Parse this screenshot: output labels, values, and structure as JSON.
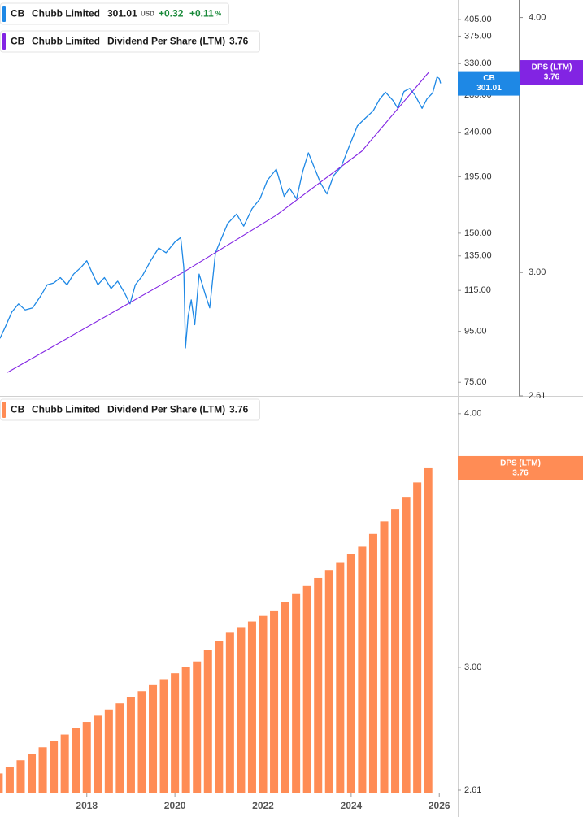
{
  "chart_data": [
    {
      "type": "line",
      "log_scale": true,
      "xlim": [
        2016.03,
        2026.42
      ],
      "ylim": [
        70.4,
        443.6
      ],
      "yticks": [
        {
          "value": 405,
          "label": "405.00"
        },
        {
          "value": 375,
          "label": "375.00"
        },
        {
          "value": 330,
          "label": "330.00"
        },
        {
          "value": 285,
          "label": "285.00"
        },
        {
          "value": 240,
          "label": "240.00"
        },
        {
          "value": 195,
          "label": "195.00"
        },
        {
          "value": 150,
          "label": "150.00"
        },
        {
          "value": 135,
          "label": "135.00"
        },
        {
          "value": 115,
          "label": "115.00"
        },
        {
          "value": 95,
          "label": "95.00"
        },
        {
          "value": 75,
          "label": "75.00"
        }
      ],
      "y2lim": [
        2.61,
        4.08
      ],
      "y2ticks": [
        {
          "value": 4,
          "label": "4.00"
        },
        {
          "value": 3,
          "label": "3.00"
        },
        2.61
      ],
      "series": [
        {
          "symbol": "CB",
          "name": "Chubb Limited",
          "color": "#1e88e5",
          "currency": "USD",
          "change": "+0.32",
          "change_pct": "+0.11",
          "pct_sign": "%",
          "x": [
            2016.03,
            2016.15,
            2016.3,
            2016.45,
            2016.6,
            2016.77,
            2016.95,
            2017.1,
            2017.25,
            2017.4,
            2017.55,
            2017.7,
            2017.87,
            2018.0,
            2018.1,
            2018.25,
            2018.4,
            2018.55,
            2018.7,
            2018.85,
            2018.98,
            2019.1,
            2019.26,
            2019.45,
            2019.63,
            2019.8,
            2020.0,
            2020.13,
            2020.2,
            2020.24,
            2020.3,
            2020.37,
            2020.45,
            2020.55,
            2020.7,
            2020.79,
            2020.92,
            2021.05,
            2021.2,
            2021.4,
            2021.56,
            2021.75,
            2021.93,
            2022.1,
            2022.3,
            2022.48,
            2022.6,
            2022.76,
            2022.9,
            2023.03,
            2023.15,
            2023.31,
            2023.45,
            2023.6,
            2023.77,
            2023.95,
            2024.14,
            2024.3,
            2024.5,
            2024.65,
            2024.78,
            2024.95,
            2025.06,
            2025.2,
            2025.33,
            2025.45,
            2025.61,
            2025.72,
            2025.85,
            2025.95,
            2026.0,
            2026.03
          ],
          "values": [
            92,
            97,
            104,
            108,
            105,
            106,
            112,
            118,
            119,
            122,
            118,
            124,
            128,
            132,
            126,
            118,
            122,
            116,
            120,
            114,
            108,
            118,
            123,
            132,
            140,
            137,
            144,
            147,
            128,
            88,
            102,
            110,
            98,
            124,
            112,
            106,
            137,
            146,
            157,
            164,
            155,
            168,
            176,
            192,
            202,
            178,
            185,
            176,
            200,
            218,
            205,
            189,
            180,
            196,
            204,
            224,
            247,
            255,
            265,
            280,
            289,
            278,
            268,
            290,
            294,
            285,
            268,
            280,
            288,
            310,
            308,
            301.01
          ]
        },
        {
          "symbol": "CB",
          "company": "Chubb Limited",
          "name": "Dividend Per Share (LTM)",
          "label": "DPS (LTM)",
          "color": "#8224e3",
          "axis": "y2",
          "x": [
            2016.2,
            2020.18,
            2022.3,
            2024.24,
            2025.76
          ],
          "values": [
            2.68,
            3.0,
            3.2,
            3.44,
            3.76
          ]
        }
      ]
    },
    {
      "type": "bar",
      "log_scale": true,
      "xlim": [
        2016.03,
        2026.42
      ],
      "xticks": [
        2018,
        2020,
        2022,
        2024,
        2026
      ],
      "ylim": [
        2.61,
        4.07
      ],
      "yticks": [
        {
          "value": 4,
          "label": "4.00"
        },
        {
          "value": 3,
          "label": "3.00"
        },
        2.61
      ],
      "series": [
        {
          "symbol": "CB",
          "company": "Chubb Limited",
          "name": "Dividend Per Share (LTM)",
          "label": "DPS (LTM)",
          "color": "#ff8c55",
          "x": [
            2016.0,
            2016.25,
            2016.5,
            2016.75,
            2017.0,
            2017.25,
            2017.5,
            2017.75,
            2018.0,
            2018.25,
            2018.5,
            2018.75,
            2019.0,
            2019.25,
            2019.5,
            2019.75,
            2020.0,
            2020.25,
            2020.5,
            2020.75,
            2021.0,
            2021.25,
            2021.5,
            2021.75,
            2022.0,
            2022.25,
            2022.5,
            2022.75,
            2023.0,
            2023.25,
            2023.5,
            2023.75,
            2024.0,
            2024.25,
            2024.5,
            2024.75,
            2025.0,
            2025.25,
            2025.5,
            2025.75
          ],
          "values": [
            2.66,
            2.68,
            2.7,
            2.72,
            2.74,
            2.76,
            2.78,
            2.8,
            2.82,
            2.84,
            2.86,
            2.88,
            2.9,
            2.92,
            2.94,
            2.96,
            2.98,
            3.0,
            3.02,
            3.06,
            3.09,
            3.12,
            3.14,
            3.16,
            3.18,
            3.2,
            3.23,
            3.26,
            3.29,
            3.32,
            3.35,
            3.38,
            3.41,
            3.44,
            3.49,
            3.54,
            3.59,
            3.64,
            3.7,
            3.76
          ]
        }
      ]
    }
  ]
}
